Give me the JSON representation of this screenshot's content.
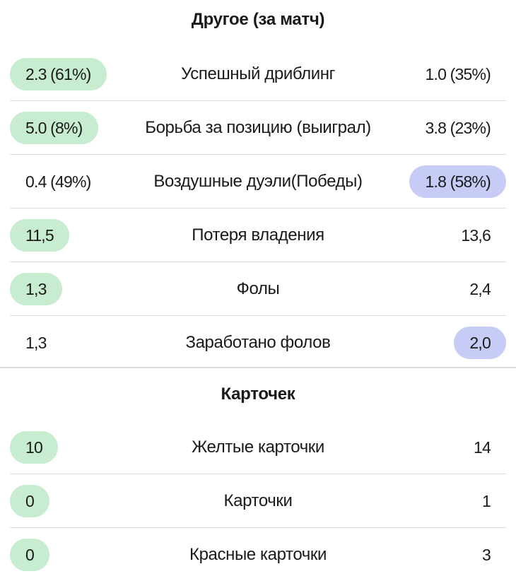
{
  "sections": [
    {
      "title": "Другое (за матч)",
      "rows": [
        {
          "left": "2.3 (61%)",
          "label": "Успешный дриблинг",
          "right": "1.0 (35%)",
          "highlight": "left"
        },
        {
          "left": "5.0 (8%)",
          "label": "Борьба за позицию (выиграл)",
          "right": "3.8 (23%)",
          "highlight": "left"
        },
        {
          "left": "0.4 (49%)",
          "label": "Воздушные дуэли(Победы)",
          "right": "1.8 (58%)",
          "highlight": "right"
        },
        {
          "left": "11,5",
          "label": "Потеря владения",
          "right": "13,6",
          "highlight": "left"
        },
        {
          "left": "1,3",
          "label": "Фолы",
          "right": "2,4",
          "highlight": "left"
        },
        {
          "left": "1,3",
          "label": "Заработано фолов",
          "right": "2,0",
          "highlight": "right"
        }
      ]
    },
    {
      "title": "Карточек",
      "rows": [
        {
          "left": "10",
          "label": "Желтые карточки",
          "right": "14",
          "highlight": "left"
        },
        {
          "left": "0",
          "label": "Карточки",
          "right": "1",
          "highlight": "left"
        },
        {
          "left": "0",
          "label": "Красные карточки",
          "right": "3",
          "highlight": "left"
        }
      ]
    }
  ],
  "colors": {
    "left_highlight": "#c7ecd0",
    "right_highlight": "#c7ccf6",
    "divider": "#dcdcdc"
  }
}
